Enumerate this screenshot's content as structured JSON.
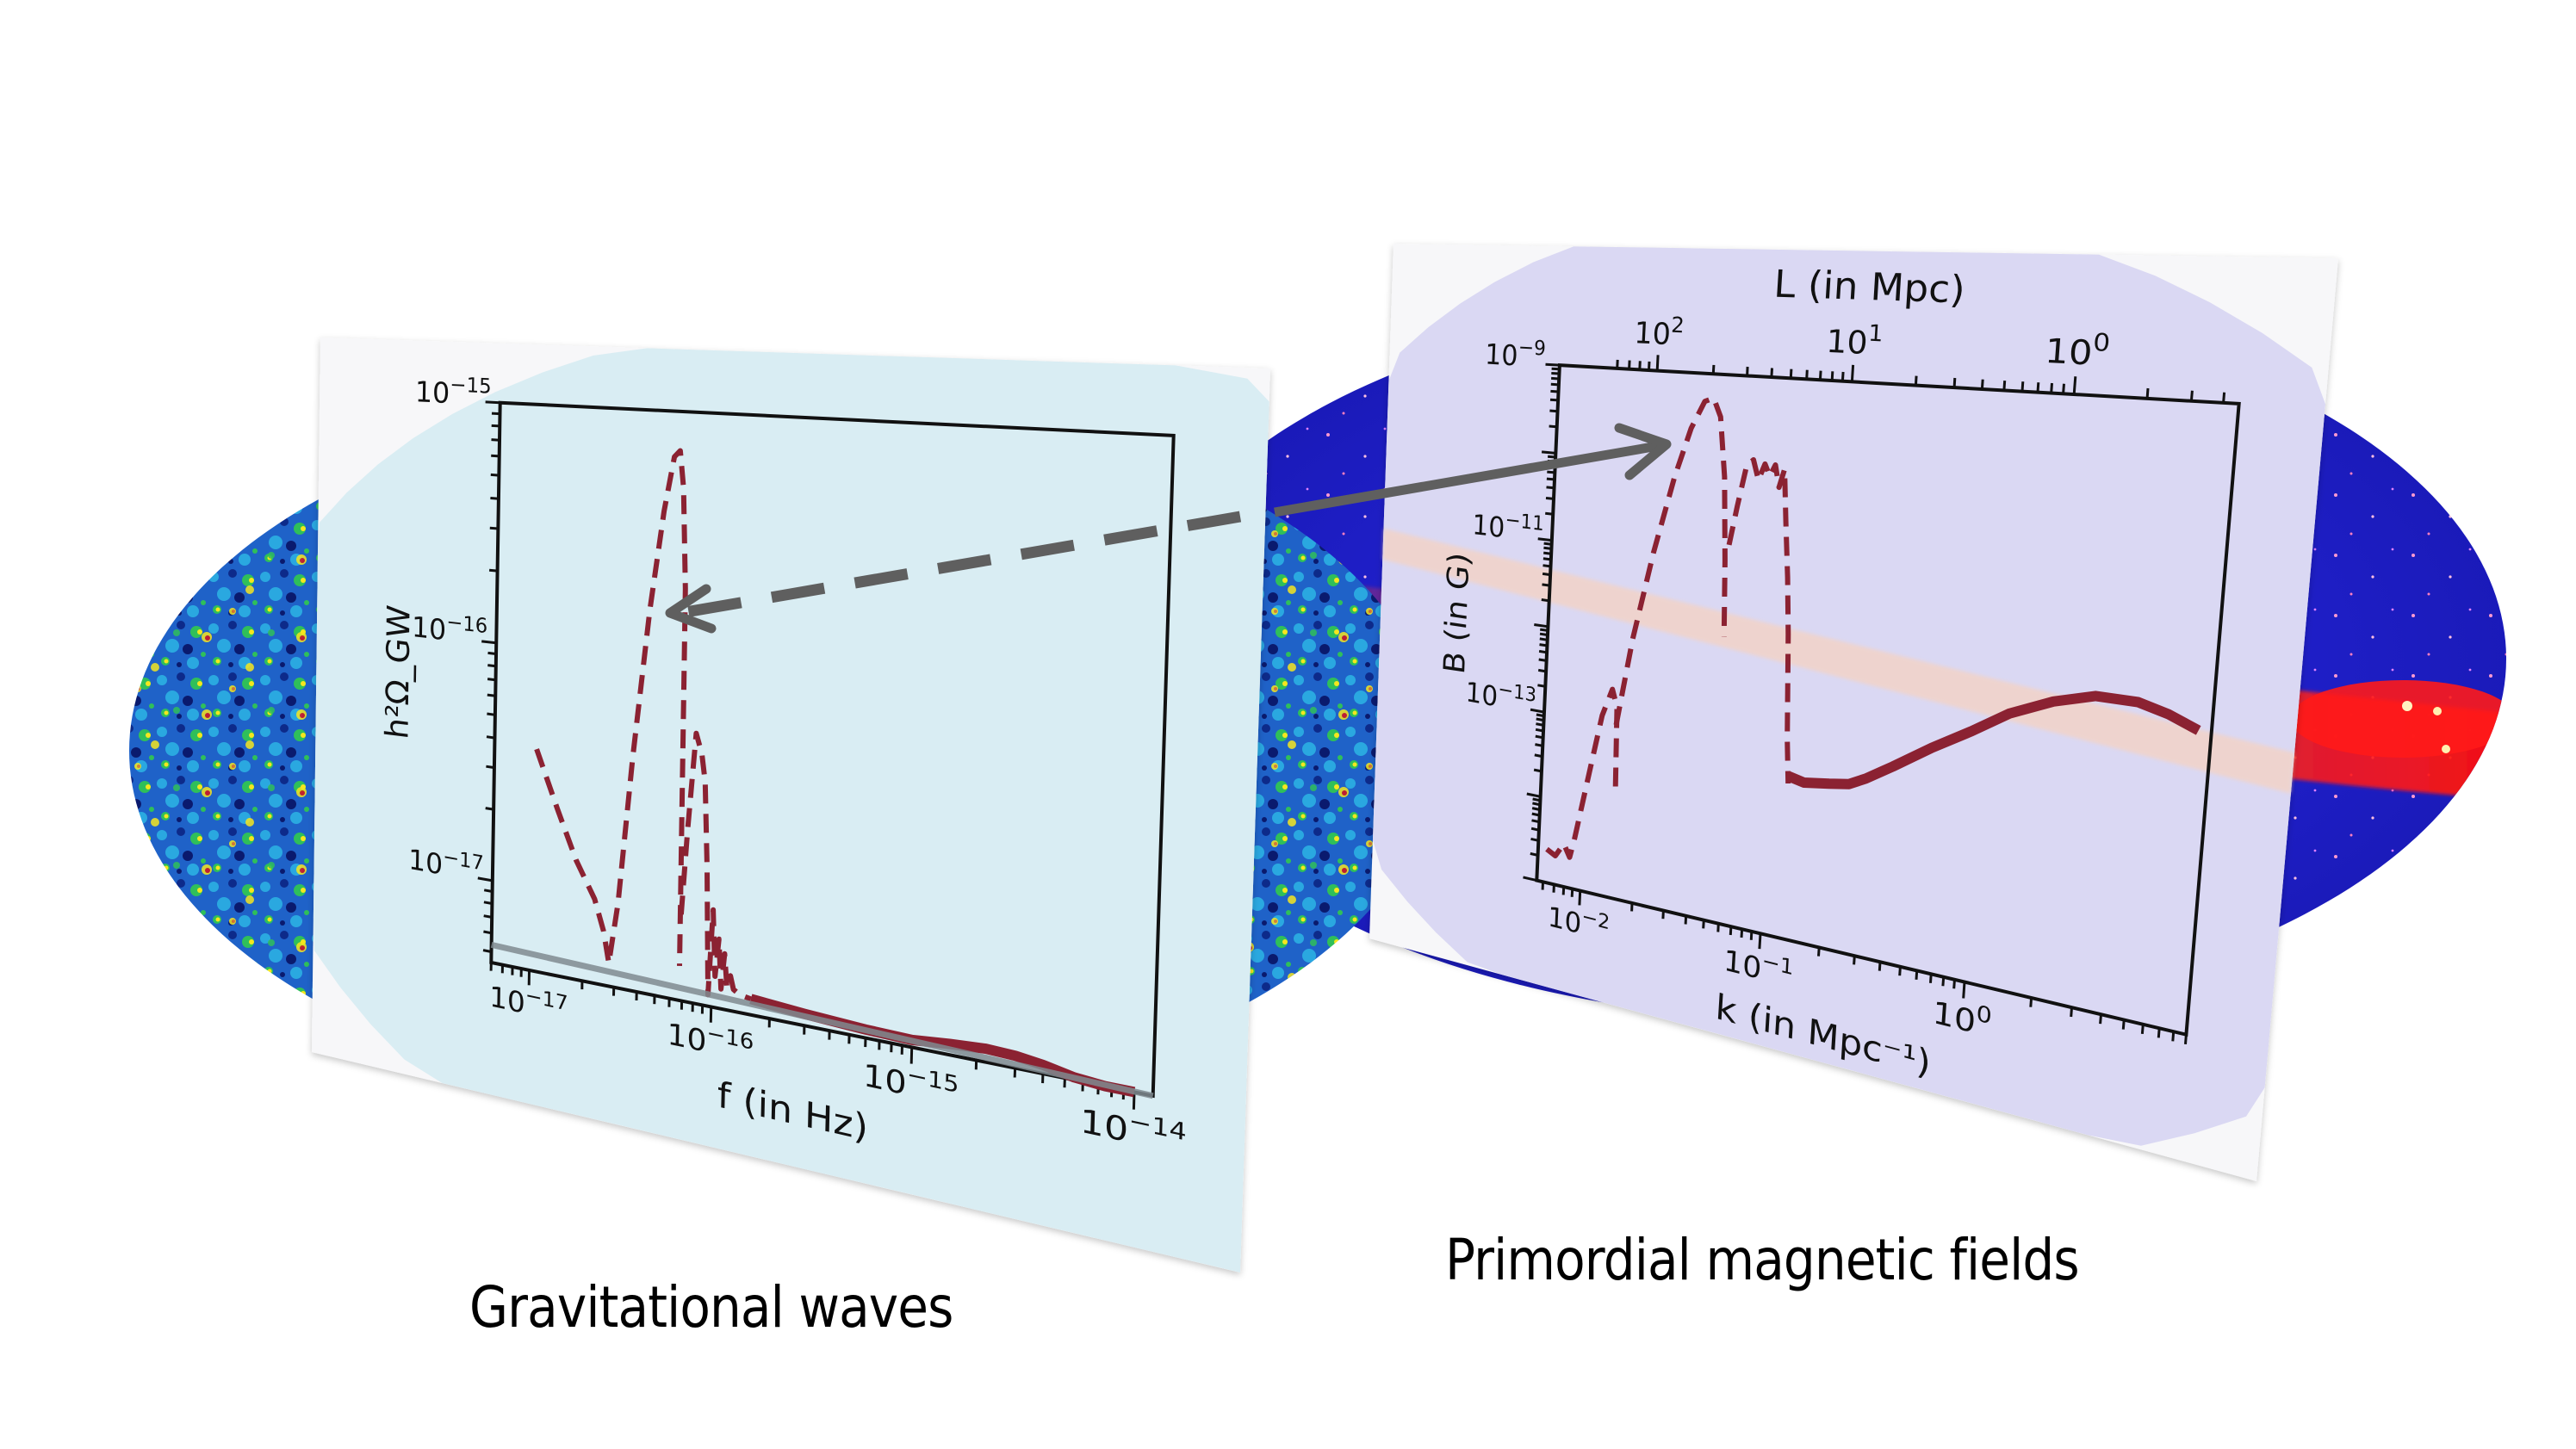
{
  "captions": {
    "gravitational_waves": "Gravitational waves",
    "primordial_magnetic_fields": "Primordial magnetic fields"
  },
  "backgrounds": {
    "cmb_map": {
      "description": "CMB sky map (Mollweide)",
      "palette": [
        "#0a1a6e",
        "#1f5fd0",
        "#2aa8e0",
        "#2fbf5a",
        "#f5e61e",
        "#f07a1e",
        "#d8121a"
      ]
    },
    "gamma_ray_map": {
      "description": "Gamma-ray sky map (Mollweide)",
      "palette": [
        "#10108a",
        "#2020e0",
        "#ff1010",
        "#ffd080",
        "#ffffff"
      ]
    }
  },
  "arrow": {
    "style": "dashed",
    "color": "#5f5f5f",
    "direction": "from PMF peak to GW peak"
  },
  "chart_data": [
    {
      "type": "line",
      "id": "gw",
      "title": "",
      "xlabel": "f (in Hz)",
      "ylabel": "h²Ω_GW",
      "xscale": "log",
      "yscale": "log",
      "xlim": [
        6e-18,
        1.2e-14
      ],
      "ylim": [
        4.5e-18,
        1e-15
      ],
      "x_ticks": [
        {
          "value": 1e-17,
          "label_base": "10",
          "label_exp": "−17"
        },
        {
          "value": 1e-16,
          "label_base": "10",
          "label_exp": "−16"
        },
        {
          "value": 1e-15,
          "label_base": "10",
          "label_exp": "−15"
        },
        {
          "value": 1e-14,
          "label_base": "10",
          "label_exp": "−14"
        }
      ],
      "y_ticks": [
        {
          "value": 1e-17,
          "label_base": "10",
          "label_exp": "−17"
        },
        {
          "value": 1e-16,
          "label_base": "10",
          "label_exp": "−16"
        },
        {
          "value": 1e-15,
          "label_base": "10",
          "label_exp": "−15"
        }
      ],
      "grid": false,
      "series": [
        {
          "name": "GW spectrum (dashed)",
          "color": "#8b2232",
          "style": "dashed",
          "x": [
            1.05e-17,
            1.4e-17,
            1.8e-17,
            2.3e-17,
            2.6e-17,
            2.8e-17,
            3.1e-17,
            3.6e-17,
            4.3e-17,
            5e-17,
            5.6e-17,
            6e-17,
            6.3e-17,
            6.6e-17,
            6.75e-17
          ],
          "y": [
            3.8e-17,
            2.2e-17,
            1.4e-17,
            1e-17,
            7.5e-18,
            5.6e-18,
            1e-17,
            4e-17,
            1.6e-16,
            4e-16,
            6.6e-16,
            7e-16,
            5e-16,
            2e-16,
            6.2e-18
          ]
        },
        {
          "name": "GW spectrum secondary peaks (dashed)",
          "color": "#8b2232",
          "style": "dashed",
          "x": [
            6.8e-17,
            7.2e-17,
            7.8e-17,
            8.4e-17,
            8.8e-17,
            9.2e-17,
            9.6e-17,
            1e-16,
            1.04e-16,
            1.08e-16,
            1.12e-16,
            1.16e-16,
            1.2e-16,
            1.25e-16,
            1.3e-16,
            1.4e-16,
            1.6e-16
          ],
          "y": [
            1e-17,
            2.2e-17,
            5.4e-17,
            4.5e-17,
            3.5e-17,
            1.6e-17,
            5e-18,
            1.1e-17,
            6e-18,
            8.5e-18,
            5.4e-18,
            7.5e-18,
            5.6e-18,
            6.2e-18,
            5.5e-18,
            5.3e-18,
            5.2e-18
          ]
        },
        {
          "name": "GW spectrum tail (thick)",
          "color": "#8b2232",
          "style": "solid-thick",
          "x": [
            1.6e-16,
            3e-16,
            6e-16,
            1e-15,
            1.5e-15,
            2.2e-15,
            3e-15,
            4e-15,
            5.5e-15,
            7.5e-15,
            1e-14
          ],
          "y": [
            5.2e-18,
            5e-18,
            4.85e-18,
            4.8e-18,
            4.95e-18,
            5.05e-18,
            5e-18,
            4.85e-18,
            4.6e-18,
            4.45e-18,
            4.3e-18
          ]
        },
        {
          "name": "reference line",
          "color": "#7f8a8f",
          "style": "solid",
          "x": [
            6e-18,
            1.2e-14
          ],
          "y": [
            5.35e-18,
            4.35e-18
          ]
        }
      ]
    },
    {
      "type": "line",
      "id": "pmf",
      "title": "",
      "xlabel": "k (in Mpc⁻¹)",
      "ylabel": "B (in G)",
      "top_xlabel": "L (in Mpc)",
      "xscale": "log",
      "yscale": "log",
      "xlim": [
        0.0055,
        9
      ],
      "ylim": [
        1e-15,
        1e-09
      ],
      "x_ticks": [
        {
          "value": 0.01,
          "label_base": "10",
          "label_exp": "−2"
        },
        {
          "value": 0.1,
          "label_base": "10",
          "label_exp": "−1"
        },
        {
          "value": 1,
          "label_base": "10",
          "label_exp": "0"
        }
      ],
      "top_x_ticks": [
        {
          "value": 0.0196,
          "label_base": "10",
          "label_exp": "2"
        },
        {
          "value": 0.196,
          "label_base": "10",
          "label_exp": "1"
        },
        {
          "value": 1.96,
          "label_base": "10",
          "label_exp": "0"
        }
      ],
      "y_ticks": [
        {
          "value": 1e-13,
          "label_base": "10",
          "label_exp": "−13"
        },
        {
          "value": 1e-11,
          "label_base": "10",
          "label_exp": "−11"
        },
        {
          "value": 1e-09,
          "label_base": "10",
          "label_exp": "−9"
        }
      ],
      "grid": false,
      "series": [
        {
          "name": "B spectrum low-k (dashed)",
          "color": "#8b2232",
          "style": "dashed",
          "x": [
            0.0062,
            0.007,
            0.0078,
            0.0085,
            0.009,
            0.0105,
            0.012,
            0.0135,
            0.0145,
            0.015
          ],
          "y": [
            2.5e-15,
            2.2e-15,
            3.2e-15,
            2.3e-15,
            4e-15,
            2.5e-14,
            1.2e-13,
            2.5e-13,
            1.6e-13,
            1.5e-14
          ]
        },
        {
          "name": "B spectrum main peak (dashed)",
          "color": "#8b2232",
          "style": "dashed",
          "x": [
            0.0145,
            0.017,
            0.021,
            0.026,
            0.031,
            0.036,
            0.04,
            0.044,
            0.048,
            0.051,
            0.053
          ],
          "y": [
            1e-13,
            1e-12,
            1e-11,
            7e-11,
            2.5e-10,
            5e-10,
            5.5e-10,
            3.5e-10,
            8e-11,
            1e-11,
            1.5e-12
          ]
        },
        {
          "name": "B spectrum secondary peaks (dashed)",
          "color": "#8b2232",
          "style": "dashed",
          "x": [
            0.053,
            0.057,
            0.062,
            0.067,
            0.072,
            0.077,
            0.082,
            0.087,
            0.092,
            0.097,
            0.102,
            0.108,
            0.113,
            0.12,
            0.125
          ],
          "y": [
            1.5e-11,
            4e-11,
            1.1e-10,
            1.3e-10,
            8e-11,
            1.2e-10,
            9e-11,
            1.2e-10,
            7e-11,
            1.1e-10,
            3e-11,
            8e-12,
            2e-12,
            1.5e-13,
            5e-14
          ]
        },
        {
          "name": "B spectrum high-k (thick)",
          "color": "#8b2232",
          "style": "solid-thick",
          "x": [
            0.125,
            0.15,
            0.2,
            0.25,
            0.3,
            0.4,
            0.6,
            0.9,
            1.3,
            2.0,
            3.0,
            4.5,
            6.0,
            8.0
          ],
          "y": [
            6e-14,
            5.5e-14,
            6e-14,
            6.5e-14,
            8e-14,
            1.2e-13,
            2.2e-13,
            3.8e-13,
            6.5e-13,
            1e-12,
            1.3e-12,
            1.3e-12,
            1.1e-12,
            8.5e-13
          ]
        }
      ]
    }
  ]
}
